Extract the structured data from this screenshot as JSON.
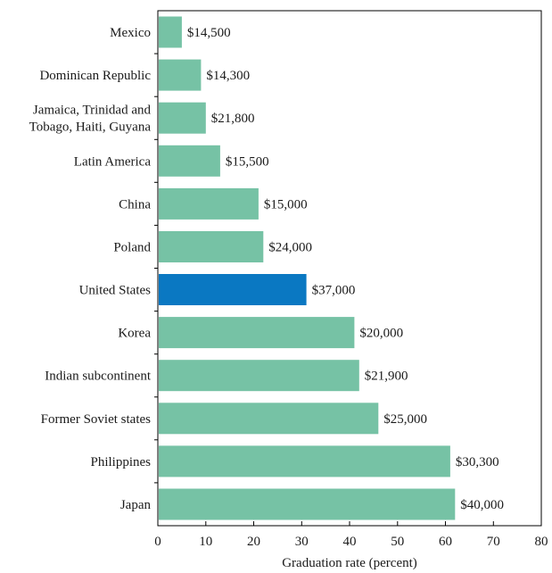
{
  "chart_data": {
    "type": "bar",
    "orientation": "horizontal",
    "xlabel": "Graduation rate (percent)",
    "ylabel": "",
    "xlim": [
      0,
      80
    ],
    "xticks": [
      "0",
      "10",
      "20",
      "30",
      "40",
      "50",
      "60",
      "70",
      "80"
    ],
    "categories": [
      "Mexico",
      "Dominican Republic",
      "Jamaica, Trinidad and Tobago, Haiti, Guyana",
      "Latin America",
      "China",
      "Poland",
      "United States",
      "Korea",
      "Indian subcontinent",
      "Former Soviet states",
      "Philippines",
      "Japan"
    ],
    "category_lines": [
      [
        "Mexico"
      ],
      [
        "Dominican Republic"
      ],
      [
        "Jamaica, Trinidad and",
        "Tobago, Haiti, Guyana"
      ],
      [
        "Latin America"
      ],
      [
        "China"
      ],
      [
        "Poland"
      ],
      [
        "United States"
      ],
      [
        "Korea"
      ],
      [
        "Indian subcontinent"
      ],
      [
        "Former Soviet states"
      ],
      [
        "Philippines"
      ],
      [
        "Japan"
      ]
    ],
    "values": [
      5,
      9,
      10,
      13,
      21,
      22,
      31,
      41,
      42,
      46,
      61,
      62
    ],
    "data_labels": [
      "$14,500",
      "$14,300",
      "$21,800",
      "$15,500",
      "$15,000",
      "$24,000",
      "$37,000",
      "$20,000",
      "$21,900",
      "$25,000",
      "$30,300",
      "$40,000"
    ],
    "highlight_category": "United States",
    "colors": {
      "bar": "#76c2a5",
      "highlight": "#0a78c2",
      "axis": "#000000"
    },
    "grid": false
  }
}
